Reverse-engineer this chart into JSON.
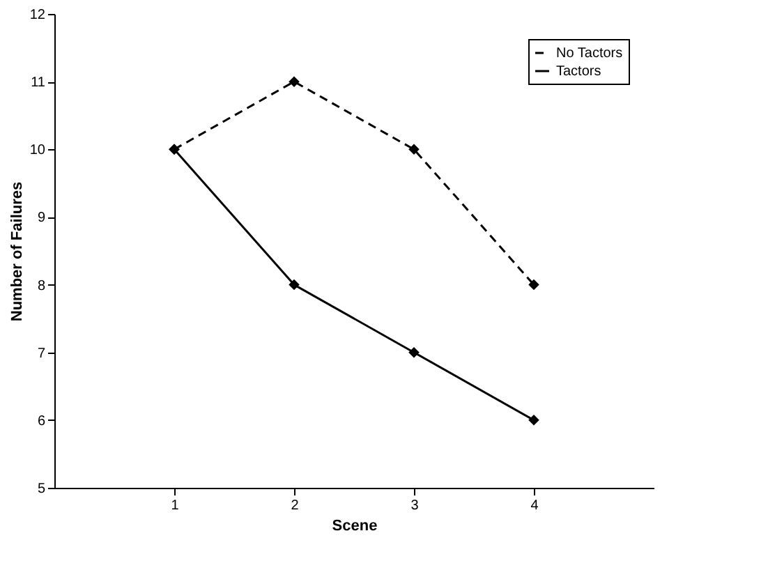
{
  "chart_data": {
    "type": "line",
    "xlabel": "Scene",
    "ylabel": "Number of Failures",
    "categories": [
      "1",
      "2",
      "3",
      "4"
    ],
    "ylim": [
      5,
      12
    ],
    "yticks": [
      5,
      6,
      7,
      8,
      9,
      10,
      11,
      12
    ],
    "grid": false,
    "legend": "top right",
    "marker": "diamond",
    "series": [
      {
        "name": "No Tactors",
        "color": "#000000",
        "line_style": "dashed",
        "values": [
          10,
          11,
          10,
          8
        ]
      },
      {
        "name": "Tactors",
        "color": "#000000",
        "line_style": "solid",
        "values": [
          10,
          8,
          7,
          6
        ]
      }
    ]
  }
}
